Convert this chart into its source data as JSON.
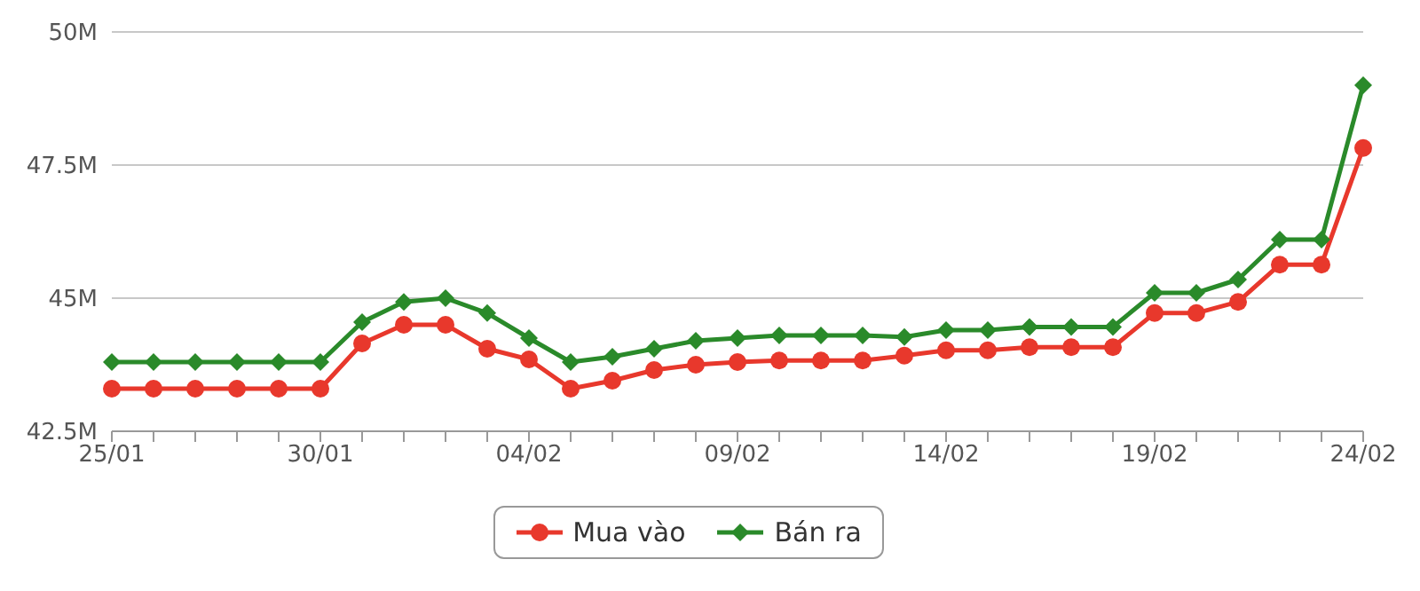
{
  "chart_data": {
    "type": "line",
    "categories": [
      "25/01",
      null,
      null,
      null,
      null,
      "30/01",
      null,
      null,
      null,
      null,
      "04/02",
      null,
      null,
      null,
      null,
      "09/02",
      null,
      null,
      null,
      null,
      "14/02",
      null,
      null,
      null,
      null,
      "19/02",
      null,
      null,
      null,
      null,
      "24/02"
    ],
    "series": [
      {
        "name": "Mua vào",
        "color": "#e8382c",
        "marker": "circle",
        "values": [
          43.3,
          43.3,
          43.3,
          43.3,
          43.3,
          43.3,
          44.15,
          44.5,
          44.5,
          44.05,
          43.85,
          43.3,
          43.45,
          43.65,
          43.75,
          43.8,
          43.83,
          43.83,
          43.83,
          43.92,
          44.02,
          44.02,
          44.08,
          44.08,
          44.08,
          44.72,
          44.72,
          44.93,
          45.63,
          45.63,
          47.82
        ]
      },
      {
        "name": "Bán ra",
        "color": "#2a8a2a",
        "marker": "diamond",
        "values": [
          43.8,
          43.8,
          43.8,
          43.8,
          43.8,
          43.8,
          44.55,
          44.93,
          45.0,
          44.72,
          44.25,
          43.8,
          43.9,
          44.05,
          44.2,
          44.25,
          44.3,
          44.3,
          44.3,
          44.27,
          44.4,
          44.4,
          44.46,
          44.46,
          44.46,
          45.1,
          45.1,
          45.35,
          46.1,
          46.1,
          49.0
        ]
      }
    ],
    "ylim": [
      42.5,
      50
    ],
    "yticks": [
      {
        "value": 42.5,
        "label": "42.5M"
      },
      {
        "value": 45,
        "label": "45M"
      },
      {
        "value": 47.5,
        "label": "47.5M"
      },
      {
        "value": 50,
        "label": "50M"
      }
    ],
    "grid": "y",
    "legend": "bottom"
  }
}
